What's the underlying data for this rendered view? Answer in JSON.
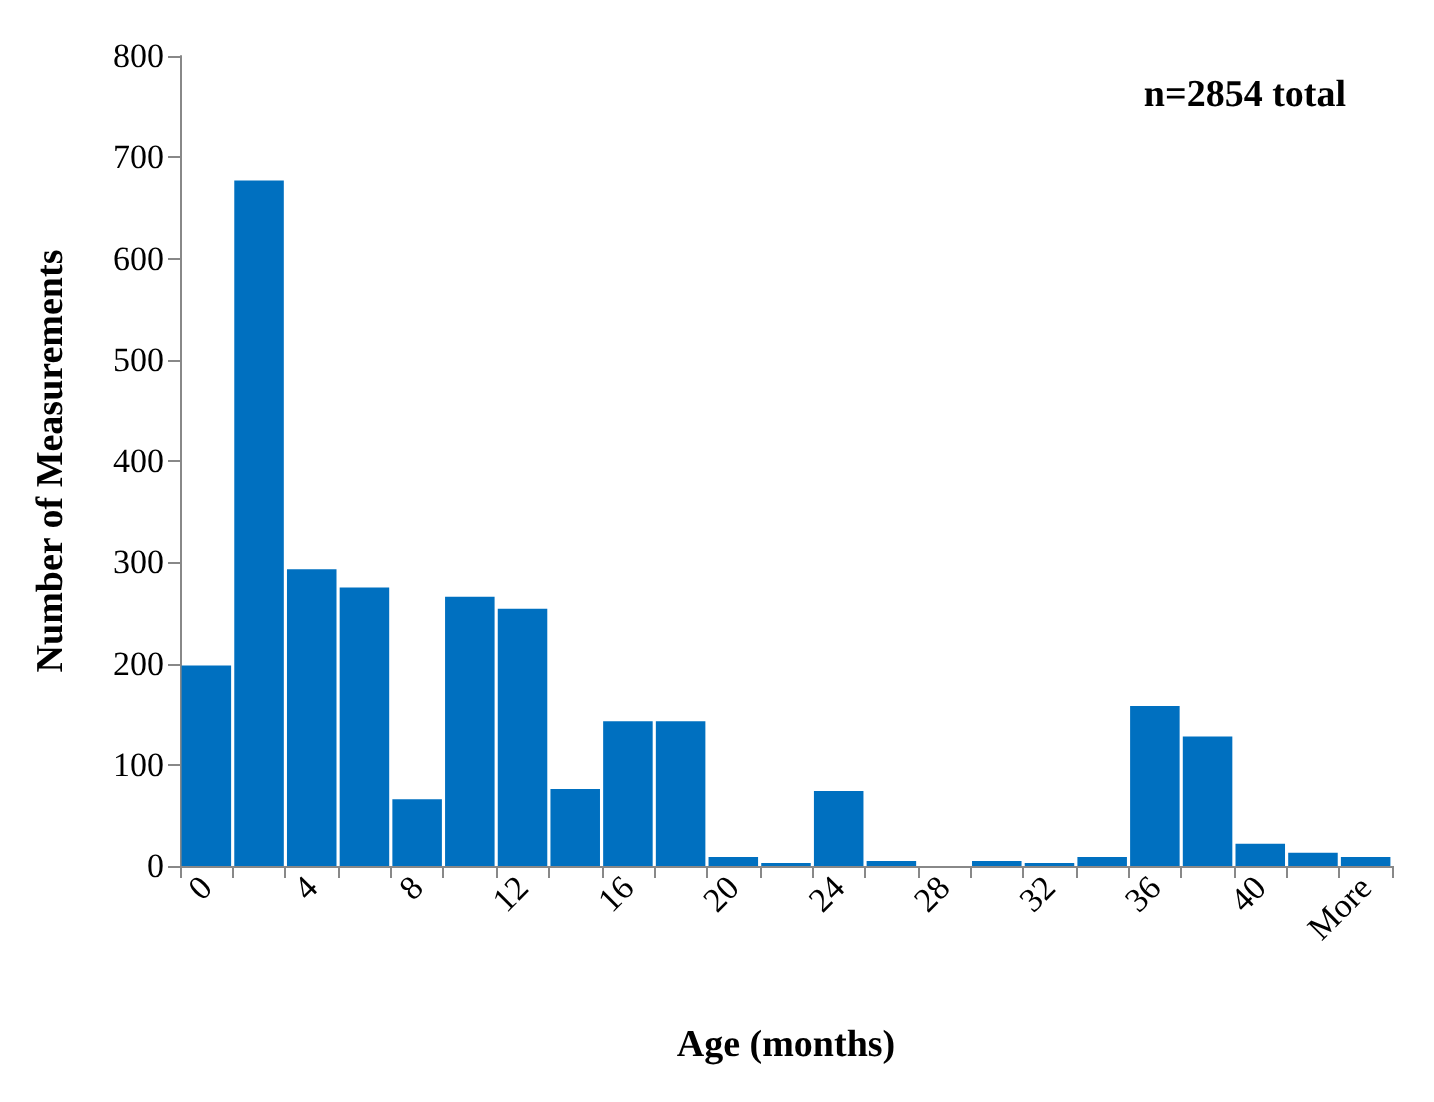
{
  "chart_data": {
    "type": "bar",
    "xlabel": "Age (months)",
    "ylabel": "Number of Measurements",
    "annotations": [
      "n=2854 total"
    ],
    "categories": [
      "0",
      null,
      "4",
      null,
      "8",
      null,
      "12",
      null,
      "16",
      null,
      "20",
      null,
      "24",
      null,
      "28",
      null,
      "32",
      null,
      "36",
      null,
      "40",
      null,
      "More"
    ],
    "values": [
      198,
      677,
      293,
      275,
      66,
      266,
      254,
      76,
      143,
      143,
      9,
      3,
      74,
      5,
      0,
      5,
      3,
      9,
      158,
      128,
      22,
      13,
      9
    ],
    "color": "#0070c0",
    "ylim": [
      0,
      800
    ],
    "yticks": [
      0,
      100,
      200,
      300,
      400,
      500,
      600,
      700,
      800
    ],
    "grid": false
  }
}
